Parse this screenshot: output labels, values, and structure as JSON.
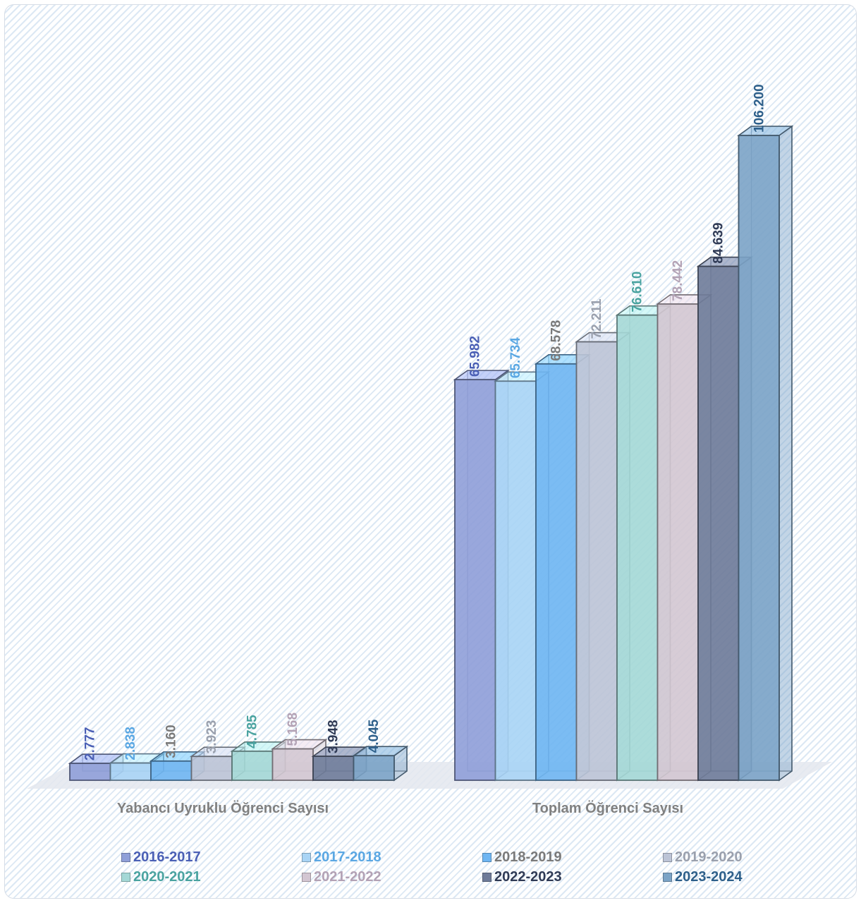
{
  "chart_data": {
    "type": "bar",
    "style": "3d-clustered-column",
    "categories": [
      "Yabancı Uyruklu Öğrenci Sayısı",
      "Toplam Öğrenci Sayısı"
    ],
    "series": [
      {
        "name": "2016-2017",
        "values": [
          2777,
          65982
        ],
        "labels": [
          "2.777",
          "65.982"
        ],
        "color": "#8f9fd8",
        "label_color": "#4a5fb5"
      },
      {
        "name": "2017-2018",
        "values": [
          2838,
          65734
        ],
        "labels": [
          "2.838",
          "65.734"
        ],
        "color": "#a9d4f5",
        "label_color": "#5aa7e3"
      },
      {
        "name": "2018-2019",
        "values": [
          3160,
          68578
        ],
        "labels": [
          "3.160",
          "68.578"
        ],
        "color": "#6fb6f2",
        "label_color": "#7a7a7a"
      },
      {
        "name": "2019-2020",
        "values": [
          3923,
          72211
        ],
        "labels": [
          "3.923",
          "72.211"
        ],
        "color": "#bcc4d6",
        "label_color": "#9aa0ad"
      },
      {
        "name": "2020-2021",
        "values": [
          4785,
          76610
        ],
        "labels": [
          "4.785",
          "76.610"
        ],
        "color": "#a4d8d6",
        "label_color": "#4aa3a0"
      },
      {
        "name": "2021-2022",
        "values": [
          5168,
          78442
        ],
        "labels": [
          "5.168",
          "78.442"
        ],
        "color": "#d3c6d2",
        "label_color": "#b3a2b5"
      },
      {
        "name": "2022-2023",
        "values": [
          3948,
          84639
        ],
        "labels": [
          "3.948",
          "84.639"
        ],
        "color": "#6e7b99",
        "label_color": "#2f3a55"
      },
      {
        "name": "2023-2024",
        "values": [
          4045,
          106200
        ],
        "labels": [
          "4.045",
          "106.200"
        ],
        "color": "#7ba3c6",
        "label_color": "#2d5f8a"
      }
    ],
    "legend_position": "bottom",
    "grid": false,
    "ylim": [
      0,
      110000
    ]
  }
}
